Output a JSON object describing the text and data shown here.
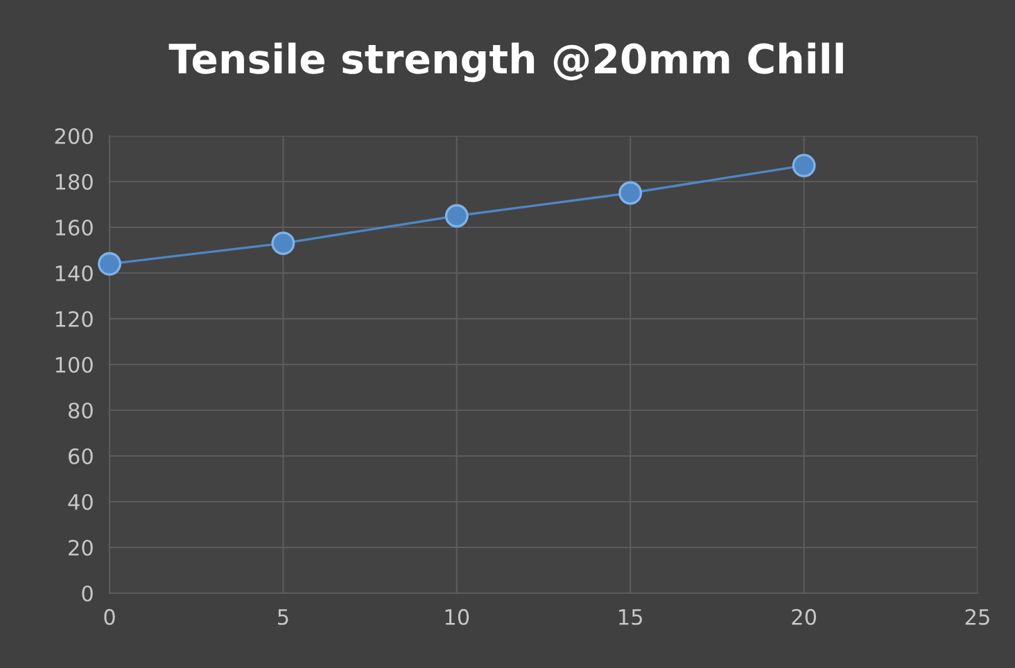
{
  "chart_data": {
    "type": "line",
    "title": "Tensile strength @20mm Chill",
    "x": [
      0,
      5,
      10,
      15,
      20
    ],
    "series": [
      {
        "color": "#4f86c6",
        "values": [
          144,
          153,
          165,
          175,
          187
        ]
      }
    ],
    "xlim": [
      0,
      25
    ],
    "xticks": [
      0,
      5,
      10,
      15,
      20,
      25
    ],
    "ylim": [
      0,
      200
    ],
    "yticks": [
      0,
      20,
      40,
      60,
      80,
      100,
      120,
      140,
      160,
      180,
      200
    ],
    "grid": true,
    "marker": "circle",
    "line_style": "solid"
  }
}
